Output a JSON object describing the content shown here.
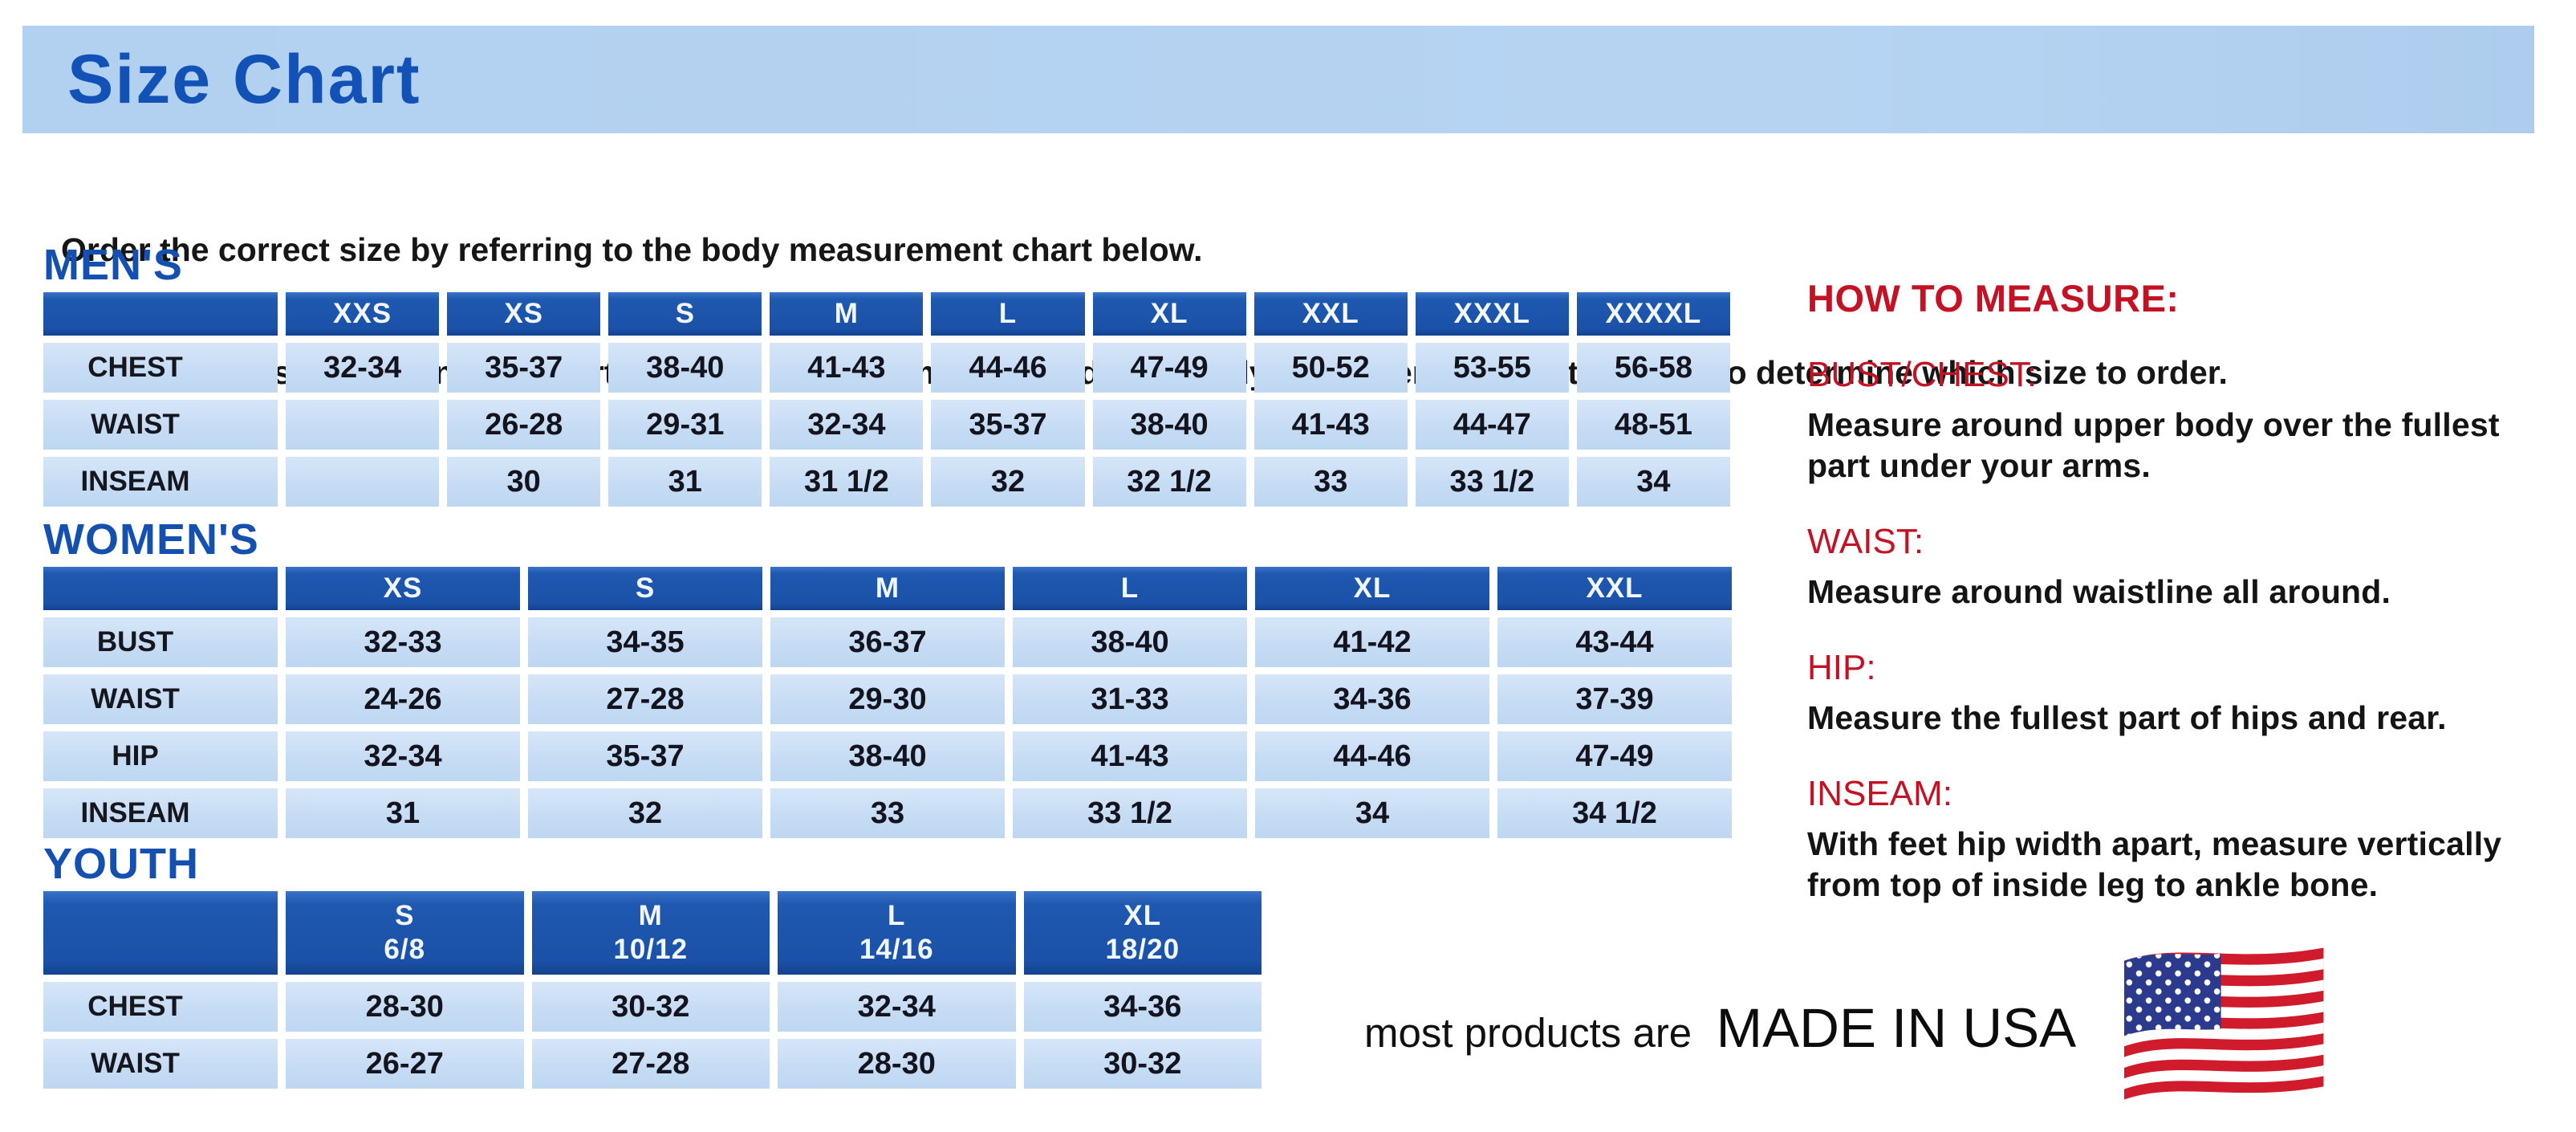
{
  "page": {
    "title": "Size Chart",
    "intro_line1": "Order the correct size by referring to the body measurement chart below.",
    "intro_line2": "Measurements shown on size chart are body measurements.  Find your body measurements on the chart to determine which size to order."
  },
  "colors": {
    "banner_bg": "#b4d2f0",
    "title_blue": "#1252b6",
    "section_heading_blue": "#1450b0",
    "table_header_blue": "#1b52a8",
    "table_cell_blue": "#c6dcf4",
    "heading_red": "#c41225",
    "text_black": "#141414"
  },
  "tables": [
    {
      "id": "mens",
      "section_label": "MEN'S",
      "columns": [
        "XXS",
        "XS",
        "S",
        "M",
        "L",
        "XL",
        "XXL",
        "XXXL",
        "XXXXL"
      ],
      "rows": [
        {
          "label": "CHEST",
          "values": [
            "32-34",
            "35-37",
            "38-40",
            "41-43",
            "44-46",
            "47-49",
            "50-52",
            "53-55",
            "56-58"
          ]
        },
        {
          "label": "WAIST",
          "values": [
            "",
            "26-28",
            "29-31",
            "32-34",
            "35-37",
            "38-40",
            "41-43",
            "44-47",
            "48-51"
          ]
        },
        {
          "label": "INSEAM",
          "values": [
            "",
            "30",
            "31",
            "31 1/2",
            "32",
            "32 1/2",
            "33",
            "33 1/2",
            "34"
          ]
        }
      ]
    },
    {
      "id": "womens",
      "section_label": "WOMEN'S",
      "columns": [
        "XS",
        "S",
        "M",
        "L",
        "XL",
        "XXL"
      ],
      "rows": [
        {
          "label": "BUST",
          "values": [
            "32-33",
            "34-35",
            "36-37",
            "38-40",
            "41-42",
            "43-44"
          ]
        },
        {
          "label": "WAIST",
          "values": [
            "24-26",
            "27-28",
            "29-30",
            "31-33",
            "34-36",
            "37-39"
          ]
        },
        {
          "label": "HIP",
          "values": [
            "32-34",
            "35-37",
            "38-40",
            "41-43",
            "44-46",
            "47-49"
          ]
        },
        {
          "label": "INSEAM",
          "values": [
            "31",
            "32",
            "33",
            "33 1/2",
            "34",
            "34 1/2"
          ]
        }
      ]
    },
    {
      "id": "youth",
      "section_label": "YOUTH",
      "columns": [
        "S\n6/8",
        "M\n10/12",
        "L\n14/16",
        "XL\n18/20"
      ],
      "rows": [
        {
          "label": "CHEST",
          "values": [
            "28-30",
            "30-32",
            "32-34",
            "34-36"
          ]
        },
        {
          "label": "WAIST",
          "values": [
            "26-27",
            "27-28",
            "28-30",
            "30-32"
          ]
        }
      ]
    }
  ],
  "how_to_measure": {
    "heading": "HOW TO MEASURE:",
    "items": [
      {
        "term": "BUST/CHEST:",
        "description": "Measure around upper body over the fullest part under your arms."
      },
      {
        "term": "WAIST:",
        "description": "Measure around waistline all around."
      },
      {
        "term": "HIP:",
        "description": "Measure the fullest part of hips and rear."
      },
      {
        "term": "INSEAM:",
        "description": "With feet hip width apart, measure vertically from top of inside leg to ankle bone."
      }
    ]
  },
  "footer": {
    "made_in_prefix": "most products are",
    "made_in_main": "MADE IN USA",
    "flag_icon": "usa-flag-icon"
  }
}
